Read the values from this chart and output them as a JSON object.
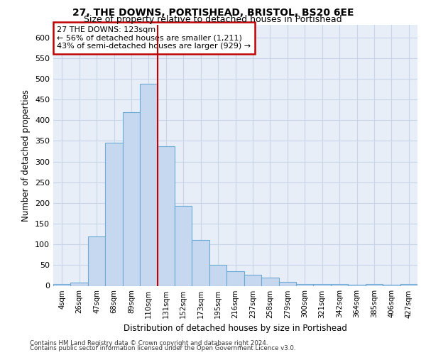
{
  "title": "27, THE DOWNS, PORTISHEAD, BRISTOL, BS20 6EE",
  "subtitle": "Size of property relative to detached houses in Portishead",
  "xlabel": "Distribution of detached houses by size in Portishead",
  "ylabel": "Number of detached properties",
  "bar_labels": [
    "4sqm",
    "26sqm",
    "47sqm",
    "68sqm",
    "89sqm",
    "110sqm",
    "131sqm",
    "152sqm",
    "173sqm",
    "195sqm",
    "216sqm",
    "237sqm",
    "258sqm",
    "279sqm",
    "300sqm",
    "321sqm",
    "342sqm",
    "364sqm",
    "385sqm",
    "406sqm",
    "427sqm"
  ],
  "bar_values": [
    5,
    7,
    120,
    345,
    420,
    487,
    337,
    193,
    110,
    50,
    35,
    27,
    20,
    10,
    5,
    5,
    5,
    3,
    4,
    3,
    5
  ],
  "bar_color": "#c5d8f0",
  "bar_edge_color": "#6aaad4",
  "vline_x": 5.5,
  "vline_color": "#c00000",
  "annotation_text": "27 THE DOWNS: 123sqm\n← 56% of detached houses are smaller (1,211)\n43% of semi-detached houses are larger (929) →",
  "annotation_box_color": "#ffffff",
  "annotation_box_edge_color": "#c00000",
  "grid_color": "#c8d4e8",
  "background_color": "#e8eef8",
  "ylim": [
    0,
    630
  ],
  "yticks": [
    0,
    50,
    100,
    150,
    200,
    250,
    300,
    350,
    400,
    450,
    500,
    550,
    600
  ],
  "footer_line1": "Contains HM Land Registry data © Crown copyright and database right 2024.",
  "footer_line2": "Contains public sector information licensed under the Open Government Licence v3.0."
}
